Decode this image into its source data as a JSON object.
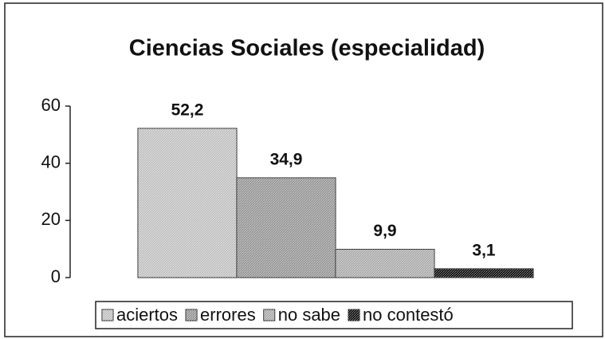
{
  "chart_data": {
    "type": "bar",
    "title": "Ciencias Sociales (especialidad)",
    "categories": [
      null
    ],
    "series": [
      {
        "name": "aciertos",
        "color": "#bdbdbd",
        "values": [
          52.2
        ],
        "value_labels": [
          "52,2"
        ]
      },
      {
        "name": "errores",
        "color": "#8f8f8f",
        "values": [
          34.9
        ],
        "value_labels": [
          "34,9"
        ]
      },
      {
        "name": "no sabe",
        "color": "#a6a6a6",
        "values": [
          9.9
        ],
        "value_labels": [
          "9,9"
        ]
      },
      {
        "name": "no contestó",
        "color": "#000000",
        "values": [
          3.1
        ],
        "value_labels": [
          "3,1"
        ]
      }
    ],
    "ylim": [
      0,
      60
    ],
    "yticks": [
      0,
      20,
      40,
      60
    ],
    "legend": "bottom"
  }
}
